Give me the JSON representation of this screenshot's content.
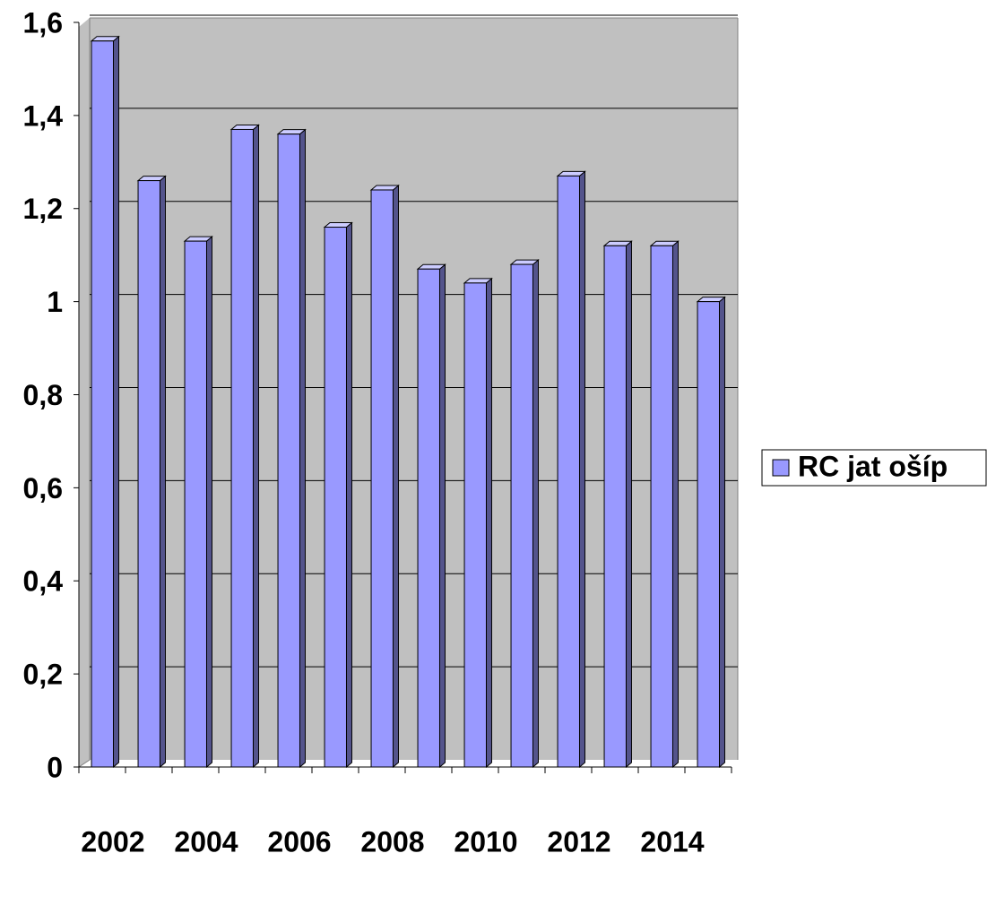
{
  "chart_data": {
    "type": "bar",
    "categories": [
      "2002",
      null,
      "2004",
      null,
      "2006",
      null,
      "2008",
      null,
      "2010",
      null,
      "2012",
      null,
      "2014",
      null
    ],
    "series": [
      {
        "name": "RC jat ošíp",
        "color": "#9999ff",
        "values": [
          1.56,
          1.26,
          1.13,
          1.37,
          1.36,
          1.16,
          1.24,
          1.07,
          1.04,
          1.08,
          1.27,
          1.12,
          1.12,
          1.0
        ]
      }
    ],
    "ylim": [
      0,
      1.6
    ],
    "yticks": [
      0,
      {
        "value": 0.2,
        "label": "0,2"
      },
      {
        "value": 0.4,
        "label": "0,4"
      },
      {
        "value": 0.6,
        "label": "0,6"
      },
      {
        "value": 0.8,
        "label": "0,8"
      },
      1,
      {
        "value": 1.2,
        "label": "1,2"
      },
      {
        "value": 1.4,
        "label": "1,4"
      },
      {
        "value": 1.6,
        "label": "1,6"
      }
    ],
    "grid": true,
    "legend": "right"
  }
}
